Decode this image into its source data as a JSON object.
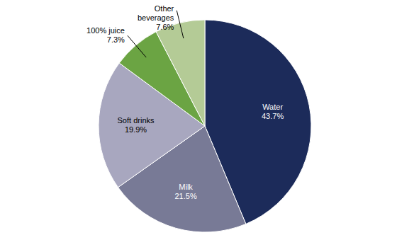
{
  "chart_data": {
    "type": "pie",
    "categories": [
      "Water",
      "Milk",
      "Soft drinks",
      "100% juice",
      "Other beverages"
    ],
    "values": [
      43.7,
      21.5,
      19.9,
      7.3,
      7.6
    ],
    "value_labels": [
      "43.7%",
      "21.5%",
      "19.9%",
      "7.3%",
      "7.6%"
    ],
    "colors": [
      "#1c2b5a",
      "#787a96",
      "#a8a7bf",
      "#6ba443",
      "#b4cb96"
    ],
    "data_labels": true
  }
}
